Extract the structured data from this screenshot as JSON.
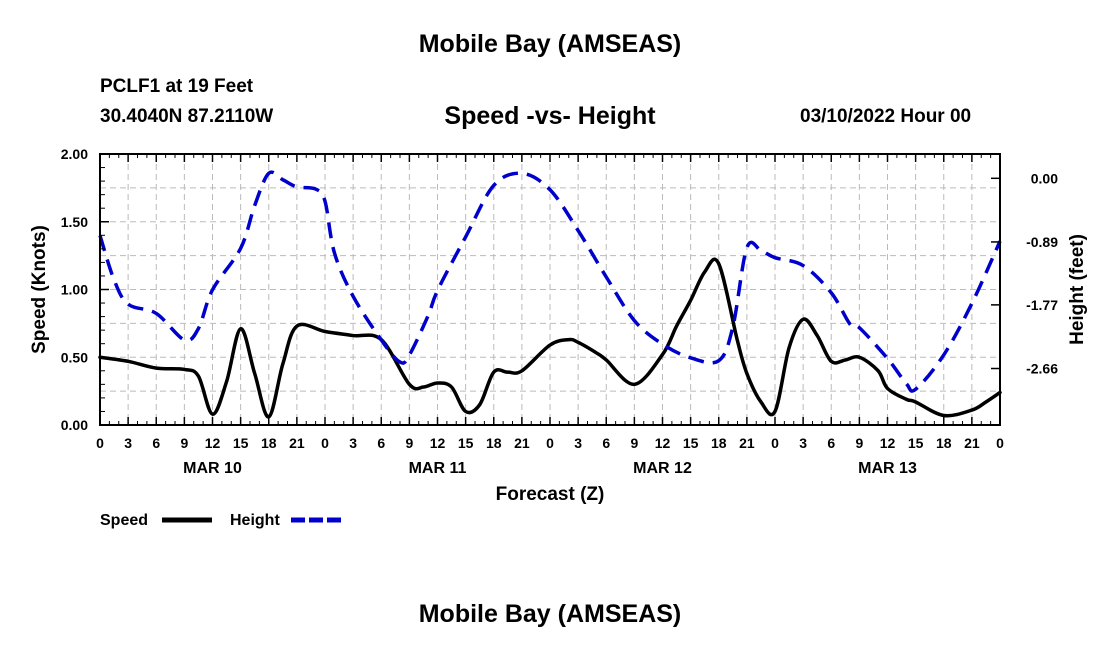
{
  "header": {
    "title": "Mobile Bay (AMSEAS)",
    "station": "PCLF1 at 19 Feet",
    "coordinates": "30.4040N  87.2110W",
    "subtitle": "Speed -vs- Height",
    "run_date": "03/10/2022 Hour 00"
  },
  "footer": {
    "title": "Mobile Bay (AMSEAS)"
  },
  "colors": {
    "speed": "#000000",
    "height": "#0000cc",
    "grid": "#bbbbbb"
  },
  "chart_data": {
    "type": "line",
    "title": "Speed -vs- Height",
    "xlabel": "Forecast (Z)",
    "ylabel": "Speed (Knots)",
    "y2label": "Height (feet)",
    "grid": true,
    "legend_position": "bottom-left",
    "x_range": [
      0,
      96
    ],
    "ylim": [
      0,
      2.0
    ],
    "y2lim": [
      -3.45,
      0.34
    ],
    "x_ticks": [
      0,
      3,
      6,
      9,
      12,
      15,
      18,
      21,
      24,
      27,
      30,
      33,
      36,
      39,
      42,
      45,
      48,
      51,
      54,
      57,
      60,
      63,
      66,
      69,
      72,
      75,
      78,
      81,
      84,
      87,
      90,
      93,
      96
    ],
    "x_tick_labels": [
      "0",
      "3",
      "6",
      "9",
      "12",
      "15",
      "18",
      "21",
      "0",
      "3",
      "6",
      "9",
      "12",
      "15",
      "18",
      "21",
      "0",
      "3",
      "6",
      "9",
      "12",
      "15",
      "18",
      "21",
      "0",
      "3",
      "6",
      "9",
      "12",
      "15",
      "18",
      "21",
      "0"
    ],
    "day_labels": [
      {
        "label": "MAR 10",
        "x": 12
      },
      {
        "label": "MAR 11",
        "x": 36
      },
      {
        "label": "MAR 12",
        "x": 60
      },
      {
        "label": "MAR 13",
        "x": 84
      }
    ],
    "y_ticks": [
      0,
      0.5,
      1.0,
      1.5,
      2.0
    ],
    "y_tick_labels": [
      "0.00",
      "0.50",
      "1.00",
      "1.50",
      "2.00"
    ],
    "y2_ticks": [
      0.0,
      -0.89,
      -1.77,
      -2.66
    ],
    "y2_tick_labels": [
      "0.00",
      "-0.89",
      "-1.77",
      "-2.66"
    ],
    "series": [
      {
        "name": "Speed",
        "axis": "left",
        "style": "solid",
        "x": [
          0,
          3,
          6,
          9,
          10.5,
          12,
          13.5,
          15,
          16.5,
          18,
          19.5,
          21,
          24,
          27,
          30,
          33,
          34.5,
          36,
          37.5,
          39,
          40.5,
          42,
          43.5,
          45,
          48,
          50,
          51,
          53,
          54,
          57,
          60,
          61.5,
          63,
          64.5,
          66,
          68,
          69,
          70.5,
          72,
          73.5,
          75,
          76.5,
          78,
          79.5,
          81,
          83,
          84,
          86,
          87,
          90,
          93,
          94.5,
          96
        ],
        "values": [
          0.5,
          0.47,
          0.42,
          0.41,
          0.36,
          0.08,
          0.32,
          0.71,
          0.38,
          0.06,
          0.45,
          0.73,
          0.69,
          0.66,
          0.63,
          0.3,
          0.28,
          0.31,
          0.28,
          0.1,
          0.15,
          0.39,
          0.39,
          0.4,
          0.59,
          0.63,
          0.61,
          0.53,
          0.48,
          0.3,
          0.52,
          0.73,
          0.92,
          1.13,
          1.19,
          0.62,
          0.38,
          0.17,
          0.1,
          0.57,
          0.78,
          0.66,
          0.47,
          0.48,
          0.5,
          0.4,
          0.27,
          0.19,
          0.17,
          0.07,
          0.11,
          0.17,
          0.24
        ]
      },
      {
        "name": "Height",
        "axis": "right",
        "style": "dashed",
        "x": [
          0,
          1.5,
          3,
          6,
          9,
          10.5,
          12,
          15,
          16.5,
          18,
          19.5,
          21,
          23,
          24,
          25,
          27,
          30,
          32,
          33,
          35,
          36,
          39,
          42,
          45,
          48,
          51,
          54,
          57,
          60,
          63,
          66,
          67.5,
          69,
          70.5,
          72,
          75,
          78,
          80,
          81,
          84,
          86,
          87,
          90,
          93,
          96
        ],
        "values": [
          -0.8,
          -1.42,
          -1.76,
          -1.89,
          -2.26,
          -2.1,
          -1.56,
          -0.98,
          -0.38,
          0.07,
          -0.02,
          -0.12,
          -0.15,
          -0.32,
          -1.04,
          -1.65,
          -2.26,
          -2.57,
          -2.47,
          -1.92,
          -1.57,
          -0.82,
          -0.1,
          0.07,
          -0.16,
          -0.73,
          -1.38,
          -1.99,
          -2.32,
          -2.51,
          -2.55,
          -2.08,
          -0.97,
          -1.01,
          -1.11,
          -1.22,
          -1.6,
          -2.04,
          -2.09,
          -2.52,
          -2.87,
          -2.95,
          -2.47,
          -1.75,
          -0.88
        ]
      }
    ]
  }
}
